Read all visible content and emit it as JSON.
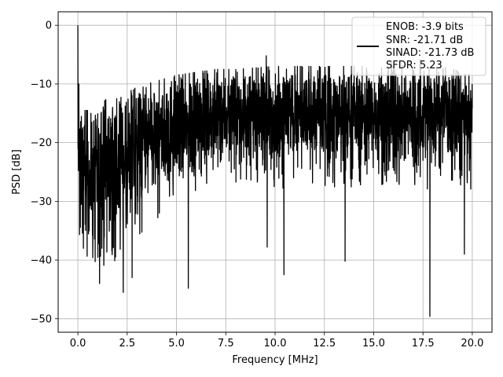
{
  "chart_data": {
    "type": "line",
    "title": "",
    "xlabel": "Frequency [MHz]",
    "ylabel": "PSD [dB]",
    "xlim": [
      -1,
      21
    ],
    "ylim": [
      -52.3,
      2.3
    ],
    "x_ticks": [
      0,
      2.5,
      5,
      7.5,
      10,
      12.5,
      15,
      17.5,
      20
    ],
    "x_tick_labels": [
      "0.0",
      "2.5",
      "5.0",
      "7.5",
      "10.0",
      "12.5",
      "15.0",
      "17.5",
      "20.0"
    ],
    "y_ticks": [
      0,
      -10,
      -20,
      -30,
      -40,
      -50
    ],
    "y_tick_labels": [
      "0",
      "−10",
      "−20",
      "−30",
      "−40",
      "−50"
    ],
    "grid": true,
    "legend_position": "top-right",
    "series_color": "#000000",
    "legend_lines": [
      "ENOB: -3.9 bits",
      "SNR: -21.71 dB",
      "SINAD: -21.73 dB",
      "SFDR: 5.23"
    ],
    "x_range": [
      0,
      20
    ],
    "noise_profile": {
      "x": [
        0,
        0.5,
        1,
        1.5,
        2,
        3,
        4,
        5,
        6,
        7,
        8,
        10,
        12,
        14,
        16,
        18,
        20
      ],
      "upper": [
        -16,
        -16,
        -15,
        -14,
        -14,
        -12,
        -11,
        -10,
        -9.5,
        -9,
        -9,
        -8.5,
        -8.5,
        -8.5,
        -8.5,
        -8,
        -10
      ],
      "lower": [
        -36,
        -40,
        -42,
        -41,
        -40,
        -36,
        -34,
        -32,
        -30,
        -28,
        -27,
        -28,
        -28,
        -28,
        -28,
        -28,
        -28
      ]
    },
    "peaks": [
      {
        "x": 0.0,
        "y": 0.0
      },
      {
        "x": 0.02,
        "y": -19
      },
      {
        "x": 0.05,
        "y": -10
      },
      {
        "x": 0.28,
        "y": -38
      },
      {
        "x": 1.1,
        "y": -44
      },
      {
        "x": 2.3,
        "y": -45.5
      },
      {
        "x": 2.75,
        "y": -43
      },
      {
        "x": 5.6,
        "y": -44.8
      },
      {
        "x": 9.55,
        "y": -5.2
      },
      {
        "x": 9.6,
        "y": -37.8
      },
      {
        "x": 10.45,
        "y": -42.5
      },
      {
        "x": 13.55,
        "y": -40.2
      },
      {
        "x": 15.9,
        "y": -6.2
      },
      {
        "x": 17.35,
        "y": -5.8
      },
      {
        "x": 17.85,
        "y": -49.6
      },
      {
        "x": 19.6,
        "y": -39
      }
    ]
  }
}
